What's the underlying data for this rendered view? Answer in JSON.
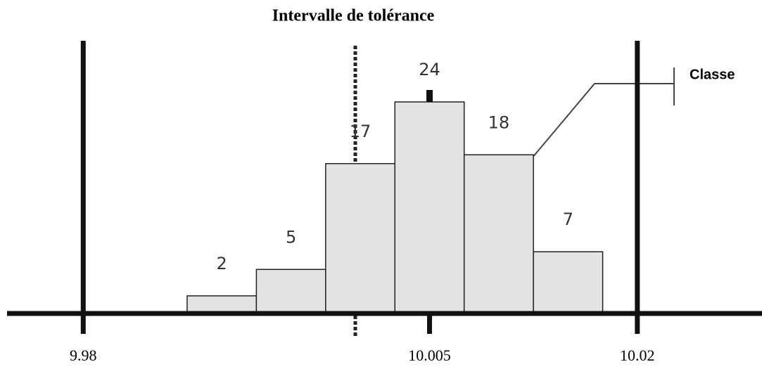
{
  "chart_data": {
    "type": "histogram",
    "title": "Intervalle de tolérance",
    "bins": [
      9.9875,
      9.9925,
      9.9975,
      10.0025,
      10.0075,
      10.0125,
      10.0175
    ],
    "counts": [
      2,
      5,
      17,
      24,
      18,
      7
    ],
    "color": "#e3e3e3",
    "xlim": [
      9.9745,
      10.029
    ],
    "xticks": [
      9.98,
      10.005,
      10.02
    ],
    "tolerance_limits": [
      9.98,
      10.02
    ],
    "ylim": [
      0,
      24
    ],
    "annotation": "Classe"
  }
}
